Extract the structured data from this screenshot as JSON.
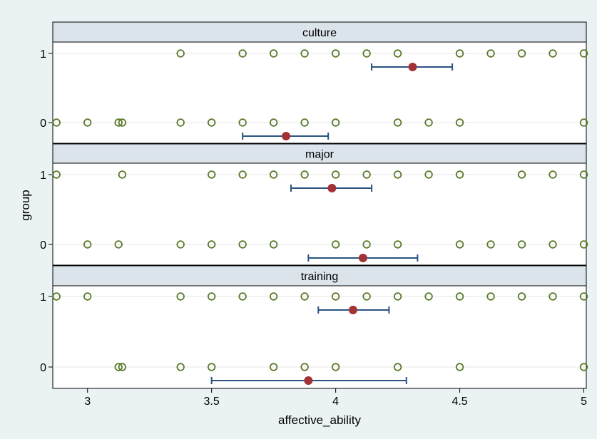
{
  "chart_data": {
    "type": "scatter",
    "xlabel": "affective_ability",
    "ylabel": "group",
    "xlim": [
      2.86,
      5.01
    ],
    "x_ticks": [
      3,
      3.5,
      4,
      4.5,
      5
    ],
    "x_tick_labels": [
      "3",
      "3.5",
      "4",
      "4.5",
      "5"
    ],
    "y_ticks": [
      0,
      1
    ],
    "y_tick_labels": [
      "0",
      "1"
    ],
    "grid": true,
    "colors": {
      "points": "#5a7a2a",
      "mean": "#a33236",
      "ci": "#2a5282",
      "strip": "#dbe3eb"
    },
    "panels": [
      {
        "name": "culture",
        "groups": [
          {
            "group": 1,
            "points": [
              3.375,
              3.625,
              3.75,
              3.875,
              4.0,
              4.125,
              4.25,
              4.5,
              4.625,
              4.75,
              4.875,
              5.0
            ],
            "mean": 4.31,
            "ci": [
              4.145,
              4.47
            ]
          },
          {
            "group": 0,
            "points": [
              2.875,
              3.0,
              3.125,
              3.14,
              3.375,
              3.5,
              3.625,
              3.75,
              3.875,
              4.0,
              4.25,
              4.375,
              4.5,
              5.0
            ],
            "mean": 3.8,
            "ci": [
              3.625,
              3.97
            ]
          }
        ]
      },
      {
        "name": "major",
        "groups": [
          {
            "group": 1,
            "points": [
              2.875,
              3.14,
              3.5,
              3.625,
              3.75,
              3.875,
              4.0,
              4.125,
              4.25,
              4.375,
              4.5,
              4.75,
              4.875,
              5.0
            ],
            "mean": 3.985,
            "ci": [
              3.82,
              4.145
            ]
          },
          {
            "group": 0,
            "points": [
              3.0,
              3.125,
              3.375,
              3.5,
              3.625,
              3.75,
              4.0,
              4.125,
              4.25,
              4.5,
              4.625,
              4.75,
              4.875,
              5.0
            ],
            "mean": 4.11,
            "ci": [
              3.89,
              4.33
            ]
          }
        ]
      },
      {
        "name": "training",
        "groups": [
          {
            "group": 1,
            "points": [
              2.875,
              3.0,
              3.375,
              3.5,
              3.625,
              3.75,
              3.875,
              4.0,
              4.125,
              4.25,
              4.375,
              4.5,
              4.625,
              4.75,
              4.875,
              5.0
            ],
            "mean": 4.07,
            "ci": [
              3.93,
              4.215
            ]
          },
          {
            "group": 0,
            "points": [
              3.125,
              3.14,
              3.375,
              3.5,
              3.75,
              3.875,
              4.0,
              4.25,
              4.5,
              5.0
            ],
            "mean": 3.89,
            "ci": [
              3.5,
              4.285
            ]
          }
        ]
      }
    ]
  }
}
